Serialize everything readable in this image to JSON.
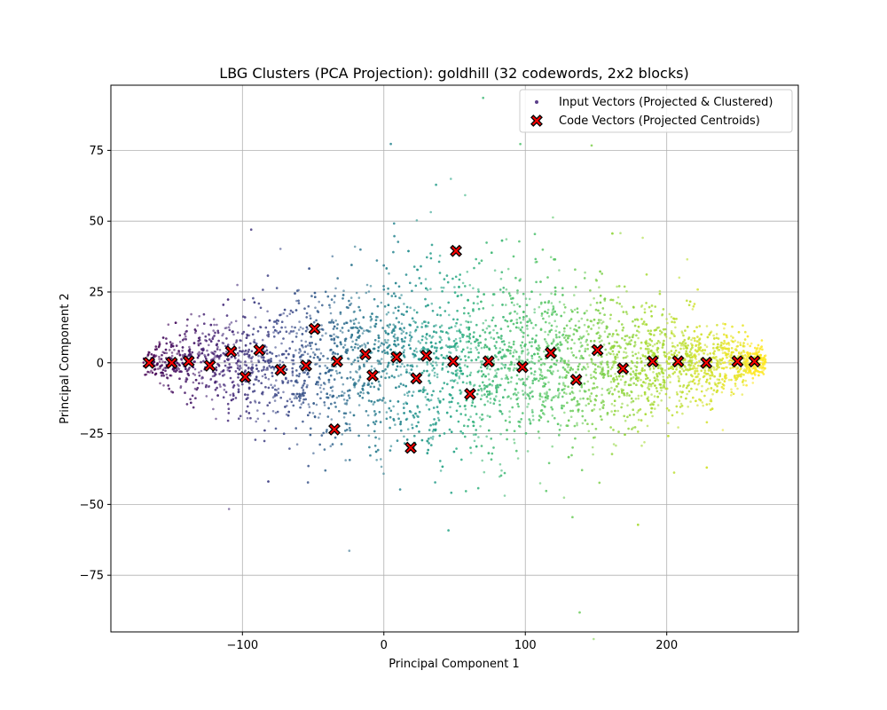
{
  "chart_data": {
    "type": "scatter",
    "title": "LBG Clusters (PCA Projection): goldhill (32 codewords, 2x2 blocks)",
    "xlabel": "Principal Component 1",
    "ylabel": "Principal Component 2",
    "xlim": [
      -193,
      293
    ],
    "ylim": [
      -95,
      98
    ],
    "xticks": [
      -100,
      0,
      100,
      200
    ],
    "xtick_labels": [
      "−100",
      "0",
      "100",
      "200"
    ],
    "yticks": [
      -75,
      -50,
      -25,
      0,
      25,
      50,
      75
    ],
    "ytick_labels": [
      "−75",
      "−50",
      "−25",
      "0",
      "25",
      "50",
      "75"
    ],
    "grid": true,
    "legend_position": "top-right",
    "input_vectors": {
      "name": "Input Vectors (Projected & Clustered)",
      "colormap": "viridis",
      "marker": "dot",
      "x_range": [
        -170,
        270
      ],
      "description_color": "colored by cluster index"
    },
    "code_vectors": {
      "name": "Code Vectors (Projected Centroids)",
      "color": "#ff0000",
      "edge_color": "#000000",
      "marker": "X",
      "points": [
        {
          "x": -166,
          "y": 0
        },
        {
          "x": -150,
          "y": 0
        },
        {
          "x": -138,
          "y": 0.5
        },
        {
          "x": -123,
          "y": -1
        },
        {
          "x": -108,
          "y": 4
        },
        {
          "x": -98,
          "y": -5
        },
        {
          "x": -88,
          "y": 4.5
        },
        {
          "x": -73,
          "y": -2.5
        },
        {
          "x": -55,
          "y": -1
        },
        {
          "x": -49,
          "y": 12
        },
        {
          "x": -35,
          "y": -23.5
        },
        {
          "x": -33,
          "y": 0.5
        },
        {
          "x": -13,
          "y": 3
        },
        {
          "x": -8,
          "y": -4.5
        },
        {
          "x": 9,
          "y": 2
        },
        {
          "x": 19,
          "y": -30
        },
        {
          "x": 23,
          "y": -5.5
        },
        {
          "x": 30,
          "y": 2.5
        },
        {
          "x": 49,
          "y": 0.5
        },
        {
          "x": 51,
          "y": 39.5
        },
        {
          "x": 61,
          "y": -11
        },
        {
          "x": 74,
          "y": 0.5
        },
        {
          "x": 98,
          "y": -1.5
        },
        {
          "x": 118,
          "y": 3.5
        },
        {
          "x": 136,
          "y": -6
        },
        {
          "x": 151,
          "y": 4.5
        },
        {
          "x": 169,
          "y": -2
        },
        {
          "x": 190,
          "y": 0.5
        },
        {
          "x": 208,
          "y": 0.5
        },
        {
          "x": 228,
          "y": 0
        },
        {
          "x": 250,
          "y": 0.5
        },
        {
          "x": 262,
          "y": 0.5
        }
      ]
    }
  },
  "colors": {
    "grid": "#b0b0b0",
    "centroid_fill": "#ff0000",
    "centroid_edge": "#000000",
    "legend_dot": "#5b3f8a"
  }
}
